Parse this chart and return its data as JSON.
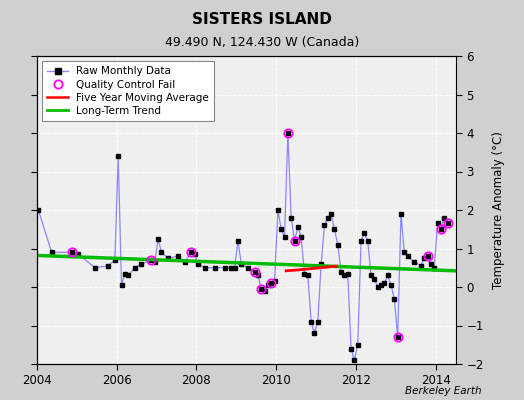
{
  "title": "SISTERS ISLAND",
  "subtitle": "49.490 N, 124.430 W (Canada)",
  "ylabel": "Temperature Anomaly (°C)",
  "credit": "Berkeley Earth",
  "ylim": [
    -2,
    6
  ],
  "xlim": [
    2004.0,
    2014.5
  ],
  "yticks": [
    -2,
    -1,
    0,
    1,
    2,
    3,
    4,
    5,
    6
  ],
  "xticks": [
    2004,
    2006,
    2008,
    2010,
    2012,
    2014
  ],
  "plot_bg": "#f0f0f0",
  "fig_bg": "#d0d0d0",
  "raw_line_color": "#8888ff",
  "raw_marker_color": "#000000",
  "qc_color": "#ff00ff",
  "moving_avg_color": "#ff0000",
  "trend_color": "#00bb00",
  "raw_data": [
    [
      2004.042,
      2.0
    ],
    [
      2004.375,
      0.9
    ],
    [
      2004.875,
      0.9
    ],
    [
      2005.042,
      0.85
    ],
    [
      2005.458,
      0.5
    ],
    [
      2005.792,
      0.55
    ],
    [
      2005.958,
      0.7
    ],
    [
      2006.042,
      3.4
    ],
    [
      2006.125,
      0.05
    ],
    [
      2006.208,
      0.35
    ],
    [
      2006.292,
      0.3
    ],
    [
      2006.458,
      0.5
    ],
    [
      2006.625,
      0.6
    ],
    [
      2006.875,
      0.7
    ],
    [
      2006.958,
      0.65
    ],
    [
      2007.042,
      1.25
    ],
    [
      2007.125,
      0.9
    ],
    [
      2007.292,
      0.75
    ],
    [
      2007.542,
      0.8
    ],
    [
      2007.708,
      0.65
    ],
    [
      2007.875,
      0.9
    ],
    [
      2007.958,
      0.85
    ],
    [
      2008.042,
      0.6
    ],
    [
      2008.208,
      0.5
    ],
    [
      2008.458,
      0.5
    ],
    [
      2008.708,
      0.5
    ],
    [
      2008.875,
      0.5
    ],
    [
      2008.958,
      0.5
    ],
    [
      2009.042,
      1.2
    ],
    [
      2009.125,
      0.6
    ],
    [
      2009.292,
      0.5
    ],
    [
      2009.458,
      0.4
    ],
    [
      2009.542,
      0.3
    ],
    [
      2009.625,
      -0.05
    ],
    [
      2009.708,
      -0.1
    ],
    [
      2009.792,
      0.05
    ],
    [
      2009.875,
      0.1
    ],
    [
      2009.958,
      0.15
    ],
    [
      2010.042,
      2.0
    ],
    [
      2010.125,
      1.5
    ],
    [
      2010.208,
      1.3
    ],
    [
      2010.292,
      4.0
    ],
    [
      2010.375,
      1.8
    ],
    [
      2010.458,
      1.2
    ],
    [
      2010.542,
      1.55
    ],
    [
      2010.625,
      1.3
    ],
    [
      2010.708,
      0.35
    ],
    [
      2010.792,
      0.3
    ],
    [
      2010.875,
      -0.9
    ],
    [
      2010.958,
      -1.2
    ],
    [
      2011.042,
      -0.9
    ],
    [
      2011.125,
      0.6
    ],
    [
      2011.208,
      1.6
    ],
    [
      2011.292,
      1.8
    ],
    [
      2011.375,
      1.9
    ],
    [
      2011.458,
      1.5
    ],
    [
      2011.542,
      1.1
    ],
    [
      2011.625,
      0.4
    ],
    [
      2011.708,
      0.3
    ],
    [
      2011.792,
      0.35
    ],
    [
      2011.875,
      -1.6
    ],
    [
      2011.958,
      -1.9
    ],
    [
      2012.042,
      -1.5
    ],
    [
      2012.125,
      1.2
    ],
    [
      2012.208,
      1.4
    ],
    [
      2012.292,
      1.2
    ],
    [
      2012.375,
      0.3
    ],
    [
      2012.458,
      0.2
    ],
    [
      2012.542,
      0.0
    ],
    [
      2012.625,
      0.05
    ],
    [
      2012.708,
      0.1
    ],
    [
      2012.792,
      0.3
    ],
    [
      2012.875,
      0.05
    ],
    [
      2012.958,
      -0.3
    ],
    [
      2013.042,
      -1.3
    ],
    [
      2013.125,
      1.9
    ],
    [
      2013.208,
      0.9
    ],
    [
      2013.292,
      0.8
    ],
    [
      2013.458,
      0.65
    ],
    [
      2013.625,
      0.55
    ],
    [
      2013.708,
      0.75
    ],
    [
      2013.792,
      0.8
    ],
    [
      2013.875,
      0.6
    ],
    [
      2013.958,
      0.5
    ],
    [
      2014.042,
      1.65
    ],
    [
      2014.125,
      1.5
    ],
    [
      2014.208,
      1.8
    ],
    [
      2014.292,
      1.65
    ]
  ],
  "qc_fail_points": [
    [
      2004.875,
      0.9
    ],
    [
      2006.875,
      0.7
    ],
    [
      2007.875,
      0.9
    ],
    [
      2009.458,
      0.4
    ],
    [
      2009.625,
      -0.05
    ],
    [
      2009.875,
      0.1
    ],
    [
      2010.292,
      4.0
    ],
    [
      2010.458,
      1.2
    ],
    [
      2013.042,
      -1.3
    ],
    [
      2013.792,
      0.8
    ],
    [
      2014.125,
      1.5
    ],
    [
      2014.292,
      1.65
    ]
  ],
  "moving_avg": [
    [
      2010.25,
      0.42
    ],
    [
      2010.5,
      0.44
    ],
    [
      2010.7,
      0.46
    ],
    [
      2010.9,
      0.48
    ],
    [
      2011.1,
      0.5
    ],
    [
      2011.3,
      0.52
    ],
    [
      2011.5,
      0.54
    ]
  ],
  "trend_x": [
    2004.0,
    2014.5
  ],
  "trend_y": [
    0.82,
    0.42
  ]
}
